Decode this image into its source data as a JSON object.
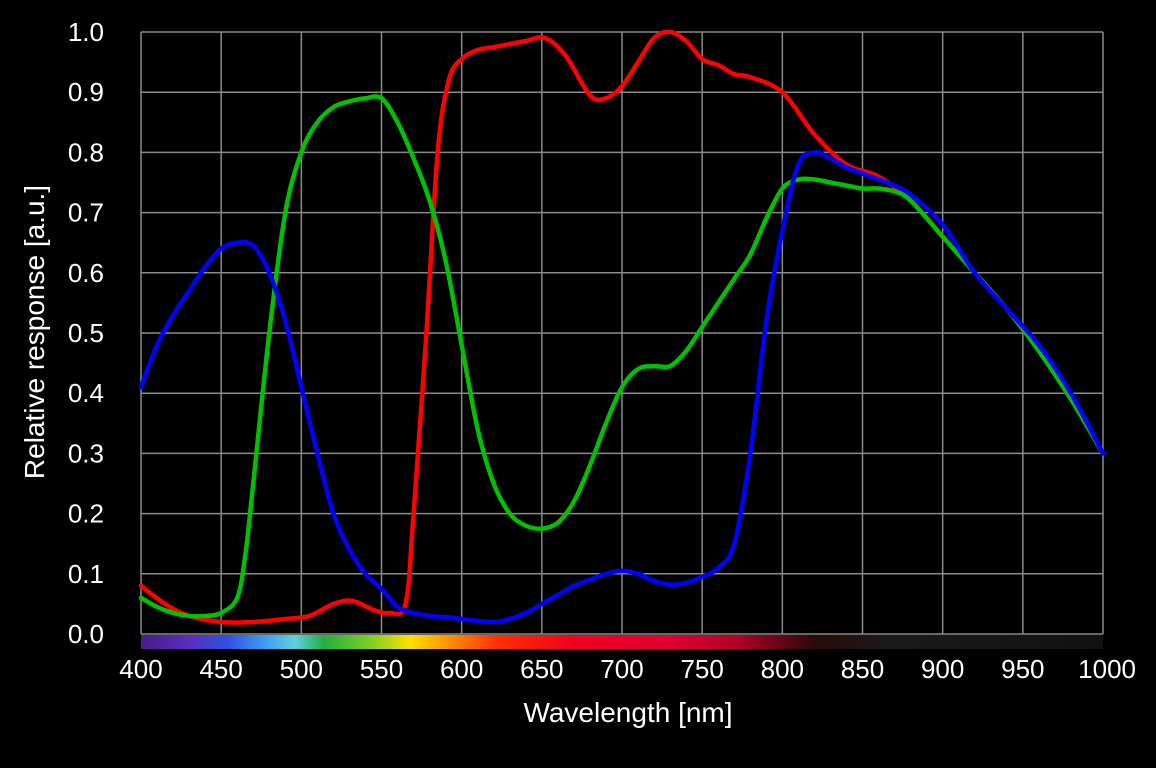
{
  "chart_data": {
    "type": "line",
    "title": "",
    "xlabel": "Wavelength [nm]",
    "ylabel": "Relative response [a.u.]",
    "xlim": [
      400,
      1000
    ],
    "ylim": [
      0,
      1.0
    ],
    "grid": true,
    "background": "#000000",
    "grid_color": "#8a8a8a",
    "x_ticks": [
      "400",
      "450",
      "500",
      "550",
      "600",
      "650",
      "700",
      "750",
      "800",
      "850",
      "900",
      "950",
      "1000"
    ],
    "y_ticks": [
      "0.0",
      "0.1",
      "0.2",
      "0.3",
      "0.4",
      "0.5",
      "0.6",
      "0.7",
      "0.8",
      "0.9",
      "1.0"
    ],
    "spectrum_bar": true,
    "series": [
      {
        "color": "#ff0000",
        "x": [
          400,
          415,
          430,
          450,
          470,
          490,
          505,
          520,
          532,
          545,
          555,
          565,
          570,
          578,
          585,
          592,
          600,
          610,
          620,
          630,
          640,
          652,
          665,
          680,
          690,
          700,
          710,
          720,
          730,
          740,
          750,
          760,
          770,
          780,
          800,
          820,
          840,
          860,
          880,
          900,
          920,
          940,
          960,
          980,
          1000
        ],
        "y": [
          0.08,
          0.05,
          0.03,
          0.02,
          0.02,
          0.025,
          0.03,
          0.05,
          0.055,
          0.04,
          0.035,
          0.05,
          0.2,
          0.5,
          0.8,
          0.92,
          0.955,
          0.97,
          0.975,
          0.98,
          0.985,
          0.99,
          0.96,
          0.895,
          0.89,
          0.91,
          0.95,
          0.99,
          1.0,
          0.985,
          0.955,
          0.945,
          0.93,
          0.925,
          0.9,
          0.83,
          0.78,
          0.76,
          0.72,
          0.66,
          0.6,
          0.54,
          0.47,
          0.39,
          0.3
        ]
      },
      {
        "color": "#00c000",
        "x": [
          400,
          410,
          420,
          430,
          440,
          450,
          460,
          465,
          470,
          480,
          490,
          500,
          510,
          520,
          530,
          540,
          550,
          560,
          570,
          580,
          590,
          600,
          610,
          620,
          630,
          640,
          650,
          660,
          670,
          680,
          690,
          700,
          710,
          720,
          730,
          740,
          750,
          760,
          770,
          780,
          790,
          800,
          810,
          820,
          830,
          840,
          850,
          860,
          870,
          880,
          900,
          920,
          940,
          960,
          980,
          1000
        ],
        "y": [
          0.06,
          0.045,
          0.035,
          0.03,
          0.03,
          0.035,
          0.06,
          0.13,
          0.25,
          0.5,
          0.7,
          0.8,
          0.85,
          0.875,
          0.885,
          0.89,
          0.89,
          0.85,
          0.79,
          0.72,
          0.62,
          0.48,
          0.34,
          0.25,
          0.2,
          0.18,
          0.175,
          0.185,
          0.22,
          0.28,
          0.35,
          0.41,
          0.44,
          0.445,
          0.445,
          0.47,
          0.51,
          0.55,
          0.59,
          0.63,
          0.69,
          0.74,
          0.755,
          0.755,
          0.75,
          0.745,
          0.74,
          0.74,
          0.735,
          0.72,
          0.66,
          0.6,
          0.54,
          0.47,
          0.39,
          0.3
        ]
      },
      {
        "color": "#0000ff",
        "x": [
          400,
          410,
          420,
          430,
          440,
          450,
          460,
          470,
          480,
          490,
          500,
          510,
          520,
          530,
          540,
          550,
          560,
          570,
          580,
          590,
          600,
          610,
          620,
          630,
          640,
          650,
          660,
          670,
          680,
          690,
          700,
          710,
          720,
          730,
          740,
          750,
          760,
          770,
          780,
          790,
          800,
          810,
          820,
          830,
          840,
          850,
          860,
          870,
          880,
          900,
          920,
          940,
          960,
          980,
          1000
        ],
        "y": [
          0.41,
          0.48,
          0.53,
          0.57,
          0.61,
          0.64,
          0.65,
          0.645,
          0.6,
          0.52,
          0.41,
          0.3,
          0.2,
          0.14,
          0.1,
          0.075,
          0.045,
          0.035,
          0.03,
          0.028,
          0.025,
          0.022,
          0.02,
          0.025,
          0.035,
          0.05,
          0.065,
          0.08,
          0.09,
          0.1,
          0.105,
          0.1,
          0.088,
          0.082,
          0.085,
          0.095,
          0.11,
          0.15,
          0.3,
          0.52,
          0.67,
          0.78,
          0.8,
          0.79,
          0.775,
          0.765,
          0.755,
          0.745,
          0.73,
          0.68,
          0.6,
          0.54,
          0.48,
          0.4,
          0.3
        ]
      }
    ]
  }
}
